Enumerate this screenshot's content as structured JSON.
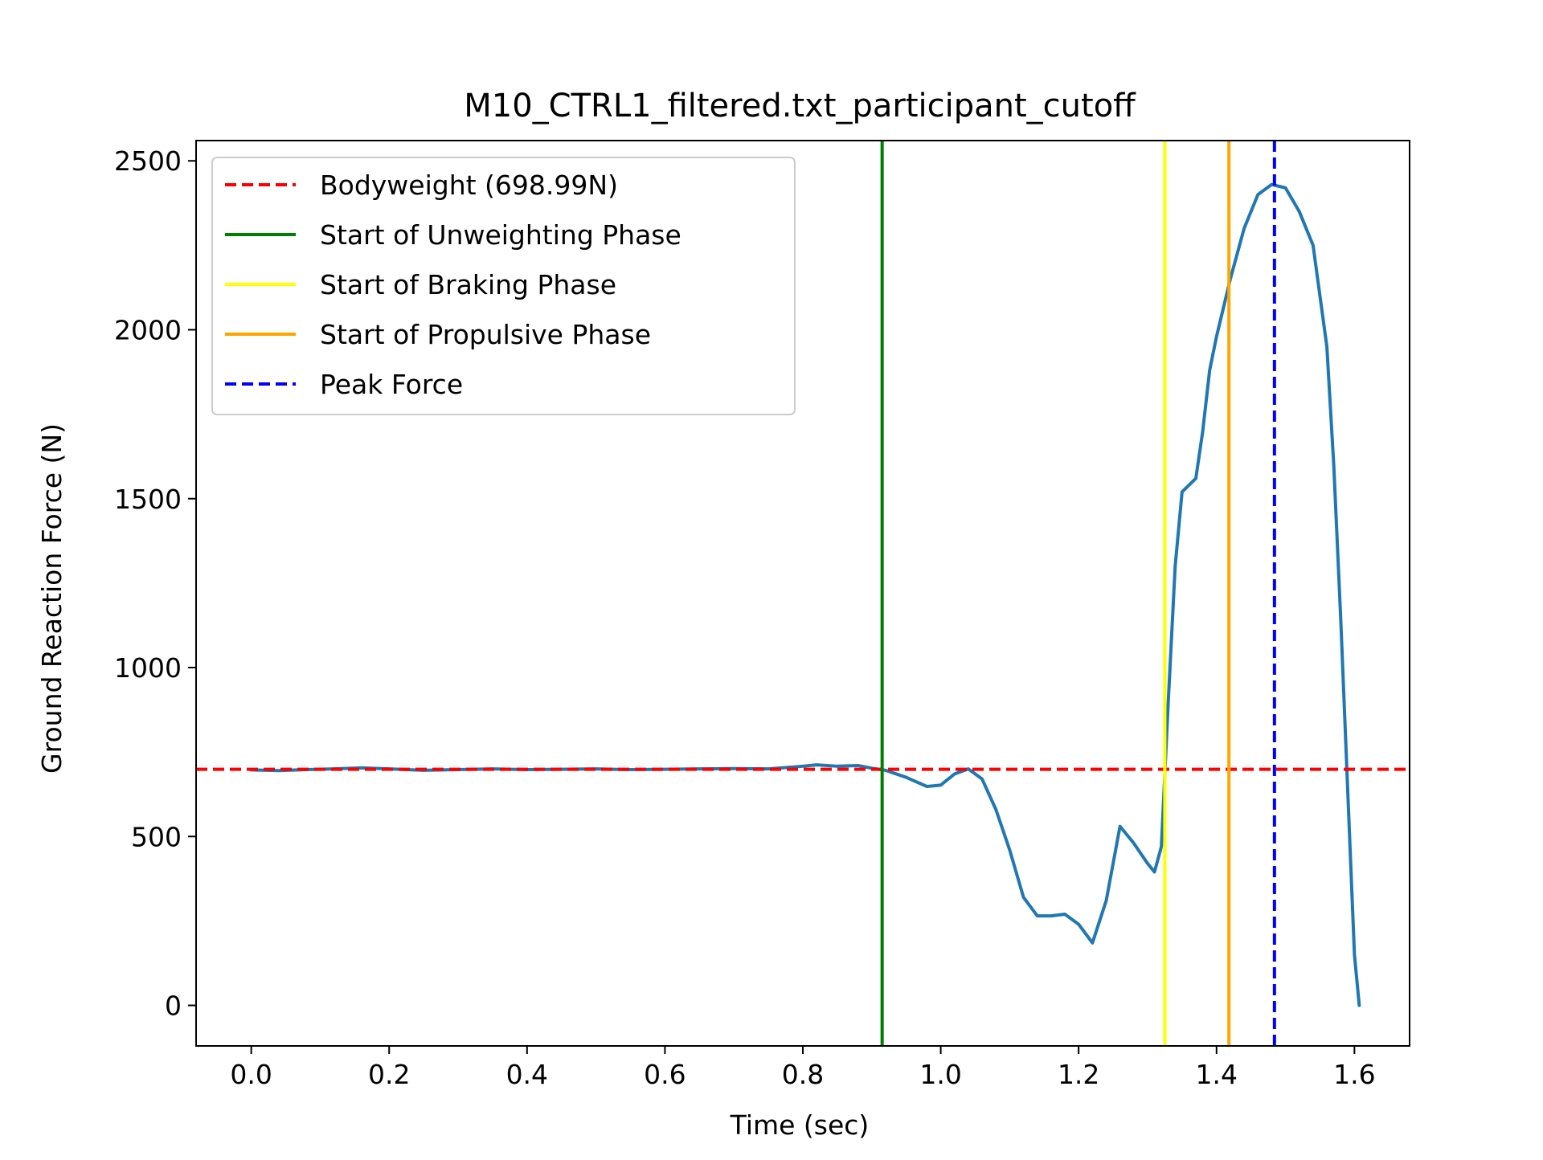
{
  "chart_data": {
    "type": "line",
    "title": "M10_CTRL1_filtered.txt_participant_cutoff",
    "xlabel": "Time (sec)",
    "ylabel": "Ground Reaction Force (N)",
    "xlim": [
      -0.08,
      1.68
    ],
    "ylim": [
      -120,
      2560
    ],
    "xticks": [
      0.0,
      0.2,
      0.4,
      0.6,
      0.8,
      1.0,
      1.2,
      1.4,
      1.6
    ],
    "xtick_labels": [
      "0.0",
      "0.2",
      "0.4",
      "0.6",
      "0.8",
      "1.0",
      "1.2",
      "1.4",
      "1.6"
    ],
    "yticks": [
      0,
      500,
      1000,
      1500,
      2000,
      2500
    ],
    "ytick_labels": [
      "0",
      "500",
      "1000",
      "1500",
      "2000",
      "2500"
    ],
    "grid": false,
    "legend_position": "upper-left",
    "series": [
      {
        "color": "#1f77b4",
        "x": [
          0.0,
          0.04,
          0.08,
          0.12,
          0.16,
          0.2,
          0.25,
          0.3,
          0.35,
          0.4,
          0.45,
          0.5,
          0.55,
          0.6,
          0.65,
          0.7,
          0.75,
          0.8,
          0.82,
          0.85,
          0.88,
          0.9,
          0.92,
          0.95,
          0.98,
          1.0,
          1.02,
          1.04,
          1.06,
          1.08,
          1.1,
          1.12,
          1.14,
          1.16,
          1.18,
          1.2,
          1.22,
          1.24,
          1.26,
          1.28,
          1.3,
          1.31,
          1.32,
          1.33,
          1.34,
          1.35,
          1.36,
          1.37,
          1.38,
          1.39,
          1.4,
          1.42,
          1.44,
          1.46,
          1.48,
          1.5,
          1.52,
          1.54,
          1.56,
          1.57,
          1.58,
          1.59,
          1.6,
          1.607
        ],
        "y": [
          697,
          695,
          698,
          700,
          703,
          700,
          696,
          698,
          700,
          698,
          699,
          700,
          698,
          699,
          700,
          701,
          700,
          708,
          712,
          708,
          710,
          702,
          696,
          675,
          648,
          652,
          685,
          700,
          670,
          580,
          460,
          320,
          265,
          265,
          270,
          240,
          185,
          310,
          530,
          480,
          420,
          395,
          470,
          900,
          1300,
          1520,
          1540,
          1560,
          1700,
          1880,
          1980,
          2150,
          2300,
          2400,
          2430,
          2420,
          2350,
          2250,
          1950,
          1600,
          1150,
          650,
          150,
          0
        ]
      }
    ],
    "reference_lines": [
      {
        "orientation": "horizontal",
        "value": 698.99,
        "color": "#ff0000",
        "style": "dashed",
        "label": "Bodyweight (698.99N)"
      },
      {
        "orientation": "vertical",
        "value": 0.915,
        "color": "#008000",
        "style": "solid",
        "label": "Start of Unweighting Phase"
      },
      {
        "orientation": "vertical",
        "value": 1.325,
        "color": "#ffff00",
        "style": "solid",
        "label": "Start of Braking Phase"
      },
      {
        "orientation": "vertical",
        "value": 1.418,
        "color": "#ffa500",
        "style": "solid",
        "label": "Start of Propulsive Phase"
      },
      {
        "orientation": "vertical",
        "value": 1.484,
        "color": "#0000ff",
        "style": "dashed",
        "label": "Peak Force"
      }
    ]
  }
}
